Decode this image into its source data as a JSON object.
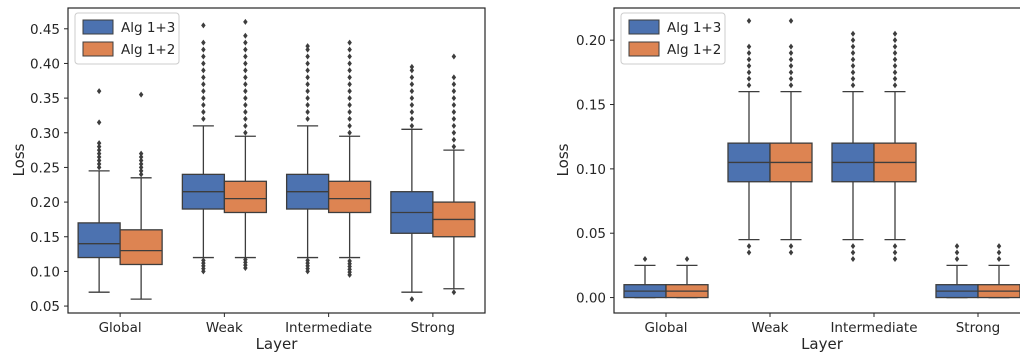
{
  "chart_data": [
    {
      "type": "box",
      "xlabel": "Layer",
      "ylabel": "Loss",
      "categories": [
        "Global",
        "Weak",
        "Intermediate",
        "Strong"
      ],
      "ylim": [
        0.04,
        0.48
      ],
      "yticks": [
        "0.05",
        "0.10",
        "0.15",
        "0.20",
        "0.25",
        "0.30",
        "0.35",
        "0.40",
        "0.45"
      ],
      "grid": false,
      "legend_position": "top-left",
      "series": [
        {
          "name": "Alg 1+3",
          "color": "#4c72b0",
          "boxes": [
            {
              "q1": 0.12,
              "median": 0.14,
              "q3": 0.17,
              "whisker_low": 0.07,
              "whisker_high": 0.245,
              "outliers": [
                0.25,
                0.255,
                0.26,
                0.265,
                0.27,
                0.275,
                0.28,
                0.285,
                0.315,
                0.36
              ]
            },
            {
              "q1": 0.19,
              "median": 0.215,
              "q3": 0.24,
              "whisker_low": 0.12,
              "whisker_high": 0.31,
              "outliers": [
                0.1,
                0.104,
                0.108,
                0.112,
                0.116,
                0.32,
                0.33,
                0.34,
                0.35,
                0.36,
                0.37,
                0.38,
                0.39,
                0.4,
                0.41,
                0.42,
                0.43,
                0.455
              ]
            },
            {
              "q1": 0.19,
              "median": 0.215,
              "q3": 0.24,
              "whisker_low": 0.12,
              "whisker_high": 0.31,
              "outliers": [
                0.1,
                0.104,
                0.108,
                0.112,
                0.116,
                0.32,
                0.33,
                0.34,
                0.35,
                0.36,
                0.37,
                0.38,
                0.39,
                0.4,
                0.41,
                0.42,
                0.425
              ]
            },
            {
              "q1": 0.155,
              "median": 0.185,
              "q3": 0.215,
              "whisker_low": 0.07,
              "whisker_high": 0.305,
              "outliers": [
                0.06,
                0.31,
                0.32,
                0.33,
                0.34,
                0.35,
                0.36,
                0.37,
                0.38,
                0.39,
                0.395
              ]
            }
          ]
        },
        {
          "name": "Alg 1+2",
          "color": "#dd8452",
          "boxes": [
            {
              "q1": 0.11,
              "median": 0.13,
              "q3": 0.16,
              "whisker_low": 0.06,
              "whisker_high": 0.235,
              "outliers": [
                0.24,
                0.245,
                0.25,
                0.255,
                0.26,
                0.265,
                0.27,
                0.355
              ]
            },
            {
              "q1": 0.185,
              "median": 0.205,
              "q3": 0.23,
              "whisker_low": 0.12,
              "whisker_high": 0.295,
              "outliers": [
                0.105,
                0.109,
                0.113,
                0.117,
                0.3,
                0.31,
                0.32,
                0.33,
                0.34,
                0.35,
                0.36,
                0.37,
                0.38,
                0.39,
                0.4,
                0.41,
                0.42,
                0.43,
                0.44,
                0.46
              ]
            },
            {
              "q1": 0.185,
              "median": 0.205,
              "q3": 0.23,
              "whisker_low": 0.12,
              "whisker_high": 0.295,
              "outliers": [
                0.095,
                0.099,
                0.103,
                0.107,
                0.111,
                0.115,
                0.3,
                0.31,
                0.32,
                0.33,
                0.34,
                0.35,
                0.36,
                0.37,
                0.38,
                0.39,
                0.4,
                0.41,
                0.42,
                0.43
              ]
            },
            {
              "q1": 0.15,
              "median": 0.175,
              "q3": 0.2,
              "whisker_low": 0.075,
              "whisker_high": 0.275,
              "outliers": [
                0.07,
                0.28,
                0.29,
                0.3,
                0.31,
                0.32,
                0.33,
                0.34,
                0.35,
                0.36,
                0.37,
                0.38,
                0.41
              ]
            }
          ]
        }
      ]
    },
    {
      "type": "box",
      "xlabel": "Layer",
      "ylabel": "Loss",
      "categories": [
        "Global",
        "Weak",
        "Intermediate",
        "Strong"
      ],
      "ylim": [
        -0.012,
        0.225
      ],
      "yticks": [
        "0.00",
        "0.05",
        "0.10",
        "0.15",
        "0.20"
      ],
      "grid": false,
      "legend_position": "top-left",
      "series": [
        {
          "name": "Alg 1+3",
          "color": "#4c72b0",
          "boxes": [
            {
              "q1": 0.0,
              "median": 0.005,
              "q3": 0.01,
              "whisker_low": 0.0,
              "whisker_high": 0.025,
              "outliers": [
                0.03
              ]
            },
            {
              "q1": 0.09,
              "median": 0.105,
              "q3": 0.12,
              "whisker_low": 0.045,
              "whisker_high": 0.16,
              "outliers": [
                0.035,
                0.04,
                0.165,
                0.17,
                0.175,
                0.18,
                0.185,
                0.19,
                0.195,
                0.215
              ]
            },
            {
              "q1": 0.09,
              "median": 0.105,
              "q3": 0.12,
              "whisker_low": 0.045,
              "whisker_high": 0.16,
              "outliers": [
                0.03,
                0.035,
                0.04,
                0.165,
                0.17,
                0.175,
                0.18,
                0.185,
                0.19,
                0.195,
                0.2,
                0.205
              ]
            },
            {
              "q1": 0.0,
              "median": 0.005,
              "q3": 0.01,
              "whisker_low": 0.0,
              "whisker_high": 0.025,
              "outliers": [
                0.03,
                0.035,
                0.04
              ]
            }
          ]
        },
        {
          "name": "Alg 1+2",
          "color": "#dd8452",
          "boxes": [
            {
              "q1": 0.0,
              "median": 0.005,
              "q3": 0.01,
              "whisker_low": 0.0,
              "whisker_high": 0.025,
              "outliers": [
                0.03
              ]
            },
            {
              "q1": 0.09,
              "median": 0.105,
              "q3": 0.12,
              "whisker_low": 0.045,
              "whisker_high": 0.16,
              "outliers": [
                0.035,
                0.04,
                0.165,
                0.17,
                0.175,
                0.18,
                0.185,
                0.19,
                0.195,
                0.215
              ]
            },
            {
              "q1": 0.09,
              "median": 0.105,
              "q3": 0.12,
              "whisker_low": 0.045,
              "whisker_high": 0.16,
              "outliers": [
                0.03,
                0.035,
                0.04,
                0.165,
                0.17,
                0.175,
                0.18,
                0.185,
                0.19,
                0.195,
                0.2,
                0.205
              ]
            },
            {
              "q1": 0.0,
              "median": 0.005,
              "q3": 0.01,
              "whisker_low": 0.0,
              "whisker_high": 0.025,
              "outliers": [
                0.03,
                0.035,
                0.04
              ]
            }
          ]
        }
      ]
    }
  ]
}
